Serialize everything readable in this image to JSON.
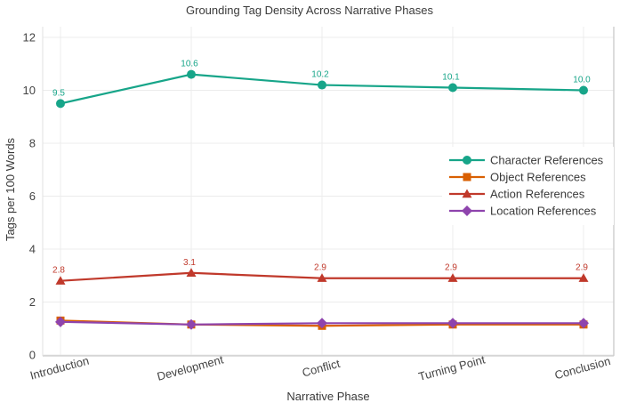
{
  "chart_data": {
    "type": "line",
    "title": "Grounding Tag Density Across Narrative Phases",
    "xlabel": "Narrative Phase",
    "ylabel": "Tags per 100 Words",
    "categories": [
      "Introduction",
      "Development",
      "Conflict",
      "Turning Point",
      "Conclusion"
    ],
    "yticks": [
      0,
      2,
      4,
      6,
      8,
      10,
      12
    ],
    "ylim": [
      0,
      12.5
    ],
    "grid": true,
    "legend_position": "middle-right",
    "series": [
      {
        "name": "Character References",
        "color": "#17a589",
        "marker": "circle",
        "values": [
          9.5,
          10.6,
          10.2,
          10.1,
          10.0
        ],
        "point_labels": [
          "9.5",
          "10.6",
          "10.2",
          "10.1",
          "10.0"
        ]
      },
      {
        "name": "Object References",
        "color": "#d95f02",
        "marker": "square",
        "values": [
          1.3,
          1.15,
          1.1,
          1.15,
          1.15
        ],
        "point_labels": null
      },
      {
        "name": "Action References",
        "color": "#c0392b",
        "marker": "triangle",
        "values": [
          2.8,
          3.1,
          2.9,
          2.9,
          2.9
        ],
        "point_labels": [
          "2.8",
          "3.1",
          "2.9",
          "2.9",
          "2.9"
        ]
      },
      {
        "name": "Location References",
        "color": "#8e44ad",
        "marker": "diamond",
        "values": [
          1.25,
          1.15,
          1.2,
          1.2,
          1.2
        ],
        "point_labels": null
      }
    ],
    "colors": {
      "gridline": "#ececec",
      "spine": "#c9c9c9",
      "left_spine": "#e2e2e2",
      "text": "#3a3a3a"
    }
  }
}
